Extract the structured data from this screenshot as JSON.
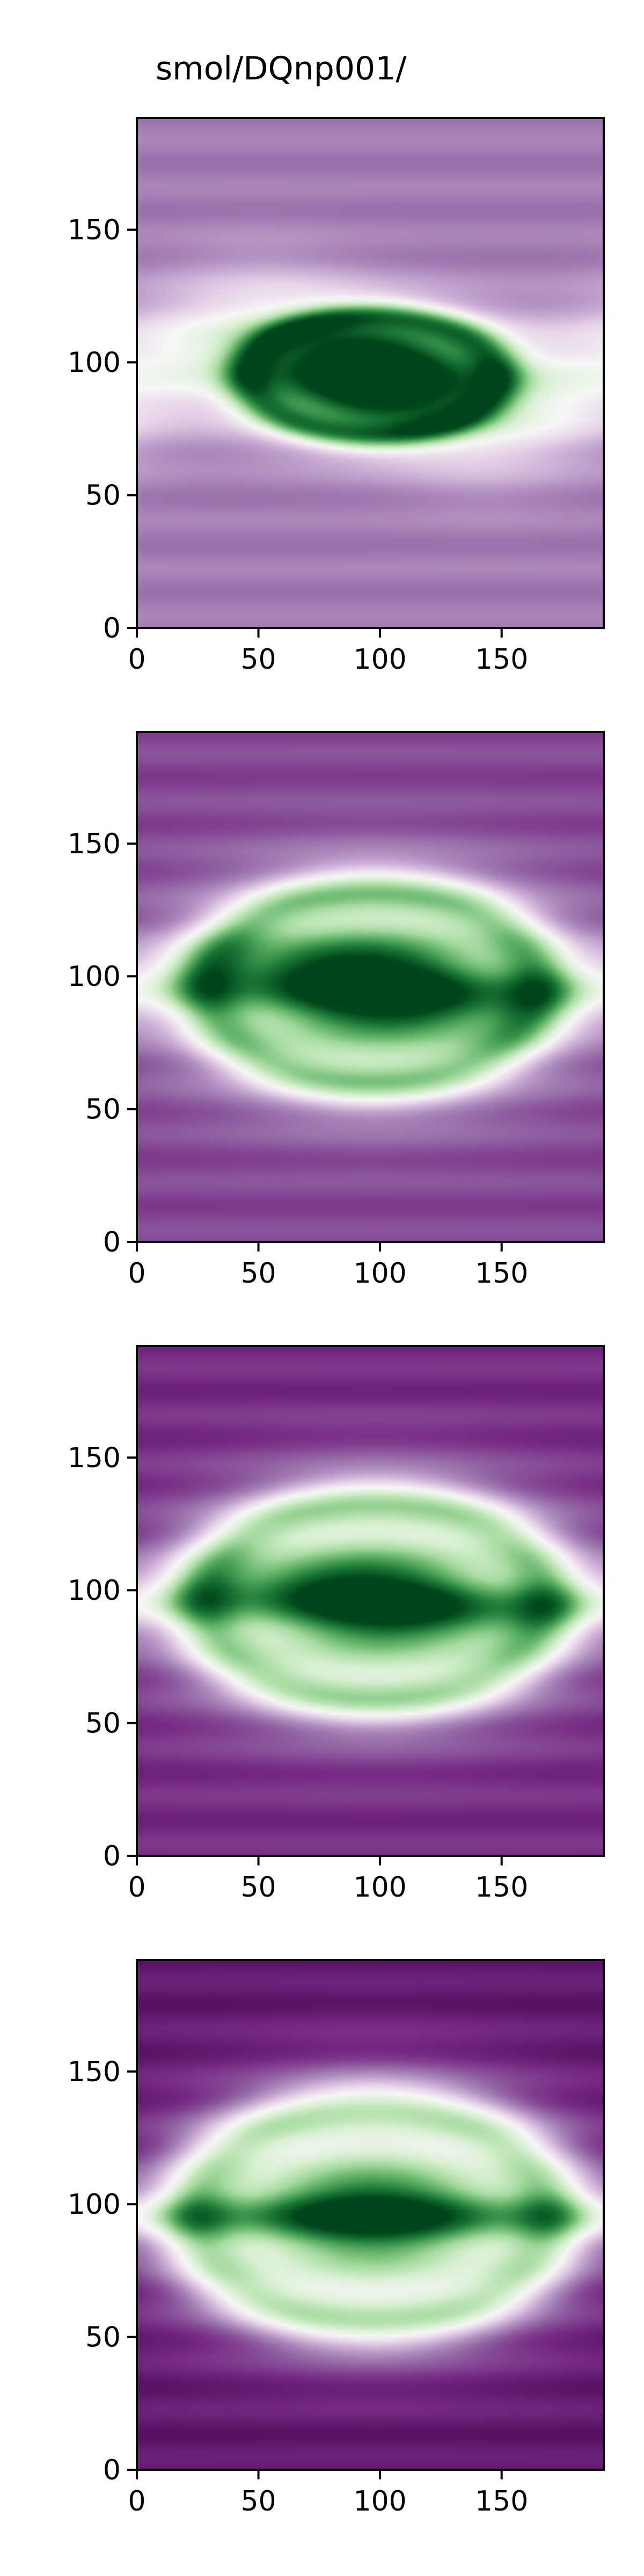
{
  "figure": {
    "title": "smol/DQnp001/"
  },
  "colormap": {
    "name": "PRGn",
    "stops": [
      "#40004b",
      "#762a83",
      "#9970ab",
      "#c2a5cf",
      "#e7d4e8",
      "#f7f7f7",
      "#d9f0d3",
      "#a6dba0",
      "#5aae61",
      "#1b7837",
      "#00441b"
    ]
  },
  "chart_data": [
    {
      "type": "heatmap",
      "title": "",
      "xlabel": "",
      "ylabel": "",
      "xlim": [
        0,
        192
      ],
      "ylim": [
        0,
        192
      ],
      "xticks": [
        0,
        50,
        100,
        150
      ],
      "yticks": [
        0,
        50,
        100,
        150
      ],
      "grid": false,
      "field": {
        "vortex_center": [
          97,
          95
        ],
        "core_radii": [
          45,
          20
        ],
        "band_center": 96,
        "band_halfwidth": 26,
        "band_wave_amplitude": 12,
        "band_wave_period": 190,
        "background_level": 0.22
      }
    },
    {
      "type": "heatmap",
      "title": "",
      "xlabel": "",
      "ylabel": "",
      "xlim": [
        0,
        192
      ],
      "ylim": [
        0,
        192
      ],
      "xticks": [
        0,
        50,
        100,
        150
      ],
      "yticks": [
        0,
        50,
        100,
        150
      ],
      "grid": false,
      "field": {
        "vortex_center": [
          97,
          96
        ],
        "core_radii": [
          60,
          32
        ],
        "band_center": 96,
        "band_halfwidth": 14,
        "band_wave_amplitude": 4,
        "band_wave_period": 190,
        "background_level": 0.14
      }
    },
    {
      "type": "heatmap",
      "title": "",
      "xlabel": "",
      "ylabel": "",
      "xlim": [
        0,
        192
      ],
      "ylim": [
        0,
        192
      ],
      "xticks": [
        0,
        50,
        100,
        150
      ],
      "yticks": [
        0,
        50,
        100,
        150
      ],
      "grid": false,
      "field": {
        "vortex_center": [
          98,
          96
        ],
        "core_radii": [
          62,
          33
        ],
        "band_center": 96,
        "band_halfwidth": 12,
        "band_wave_amplitude": 3,
        "band_wave_period": 190,
        "background_level": 0.1
      }
    },
    {
      "type": "heatmap",
      "title": "",
      "xlabel": "",
      "ylabel": "",
      "xlim": [
        0,
        192
      ],
      "ylim": [
        0,
        192
      ],
      "xticks": [
        0,
        50,
        100,
        150
      ],
      "yticks": [
        0,
        50,
        100,
        150
      ],
      "grid": false,
      "field": {
        "vortex_center": [
          97,
          96
        ],
        "core_radii": [
          64,
          36
        ],
        "band_center": 96,
        "band_halfwidth": 10,
        "band_wave_amplitude": 0,
        "band_wave_period": 190,
        "background_level": 0.06
      }
    }
  ]
}
